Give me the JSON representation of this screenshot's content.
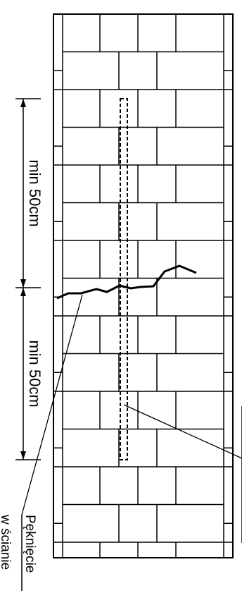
{
  "diagram": {
    "dimension_upper": "min 50cm",
    "dimension_lower": "min 50cm",
    "crack_label_line1": "Pęknięcie",
    "crack_label_line2": "w ścianie",
    "colors": {
      "line": "#000000",
      "background": "#ffffff"
    },
    "elements": [
      "brick-wall",
      "crack-line",
      "reinforcement-bar",
      "dimension-lines",
      "leader-lines"
    ]
  }
}
